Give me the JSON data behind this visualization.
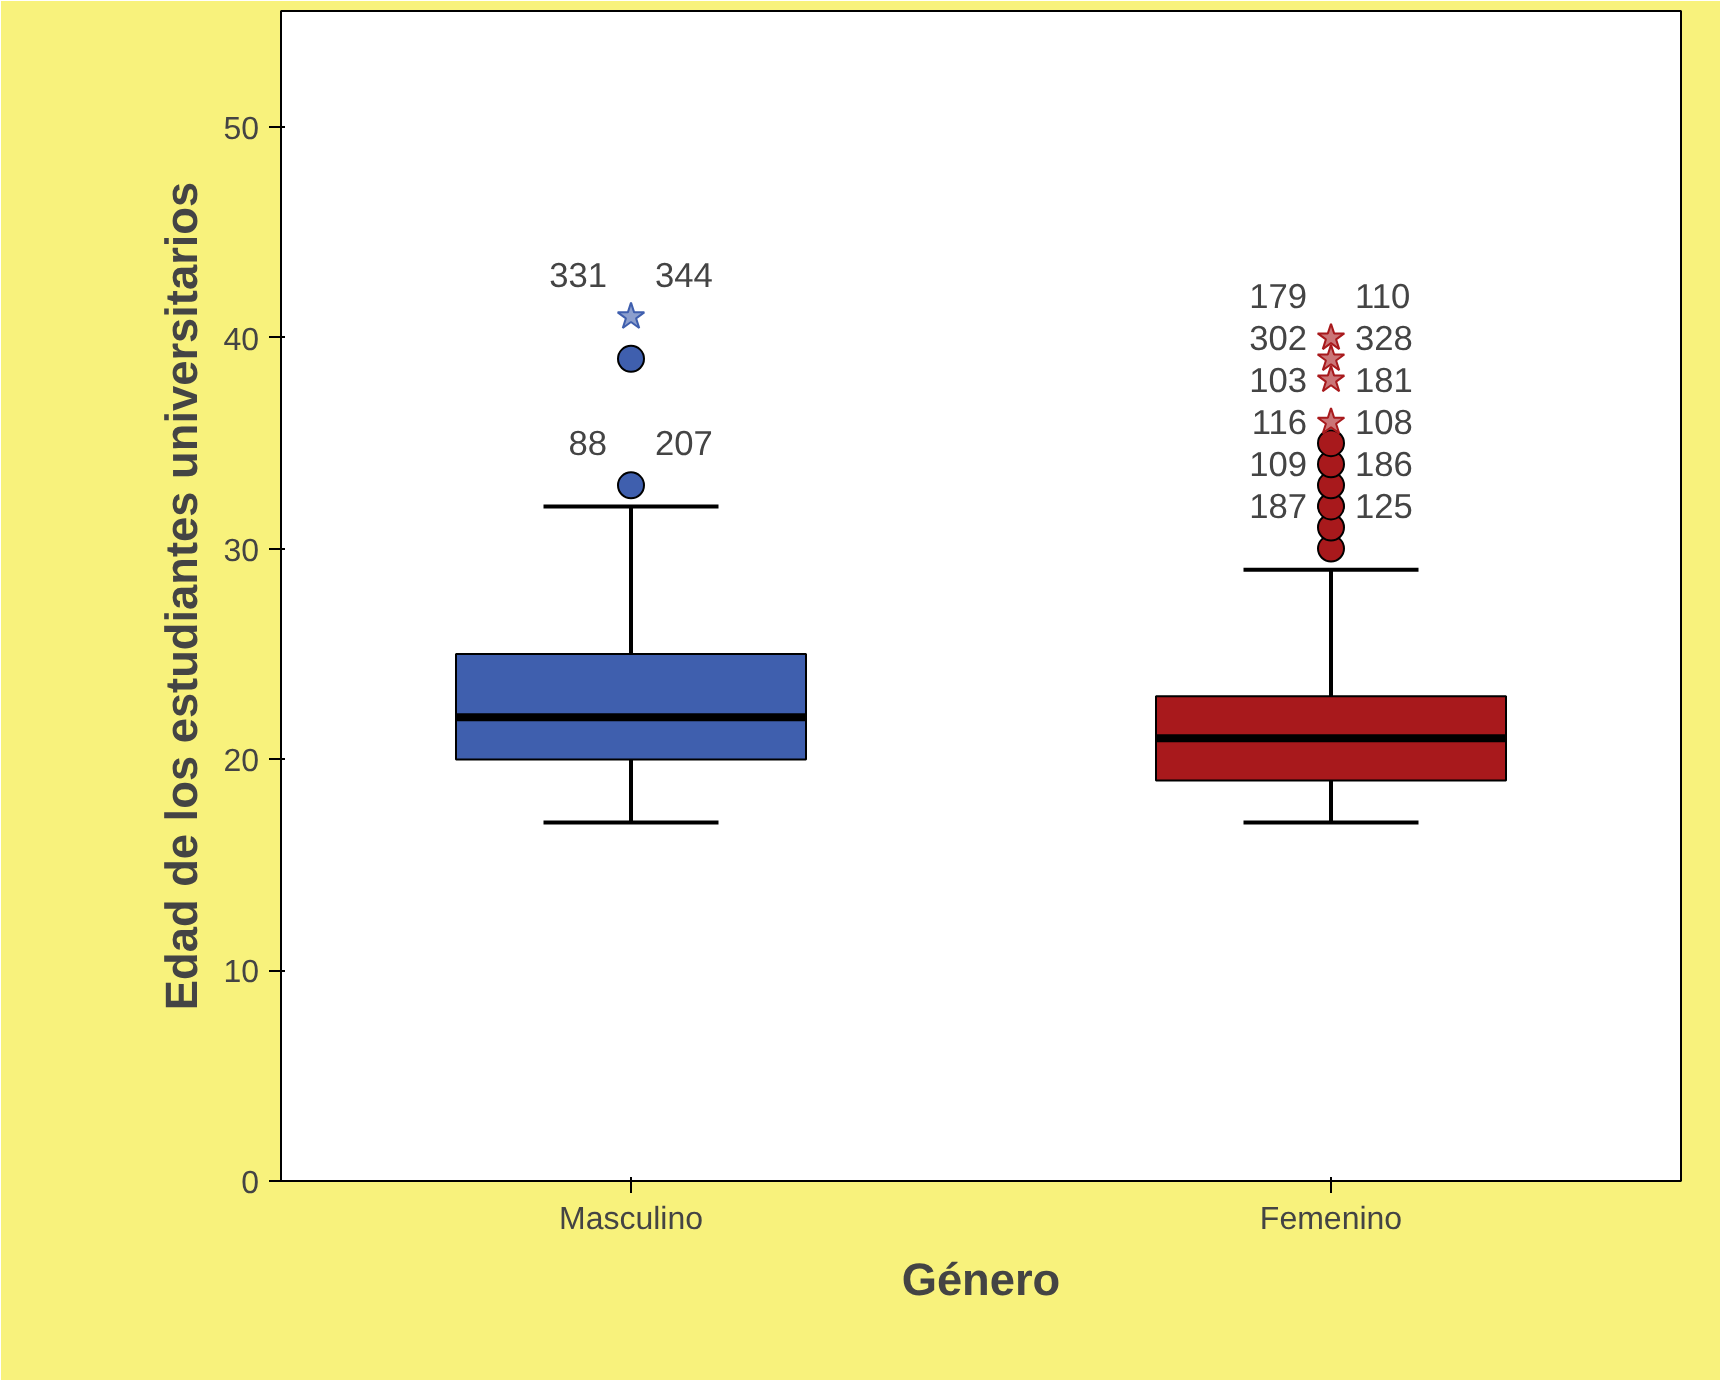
{
  "chart_data": {
    "type": "box",
    "xlabel": "Género",
    "ylabel": "Edad de los estudiantes universitarios",
    "categories": [
      "Masculino",
      "Femenino"
    ],
    "colors": [
      "#3f5fae",
      "#a8191c"
    ],
    "boxes": [
      {
        "low": 17,
        "q1": 20,
        "median": 22,
        "q3": 25,
        "high": 32,
        "outliers": [
          33,
          39,
          41
        ]
      },
      {
        "low": 17,
        "q1": 19,
        "median": 21,
        "q3": 23,
        "high": 29,
        "outliers": [
          30,
          31,
          32,
          33,
          34,
          35,
          36,
          38,
          39,
          40
        ]
      }
    ],
    "ylim": [
      0,
      55.5
    ],
    "yticks": [
      0,
      10,
      20,
      30,
      40,
      50
    ],
    "grid": false,
    "annotations": [
      "331",
      "344",
      "88",
      "207",
      "179",
      "110",
      "302",
      "328",
      "103",
      "181",
      "116",
      "108",
      "109",
      "186",
      "187",
      "125"
    ]
  }
}
